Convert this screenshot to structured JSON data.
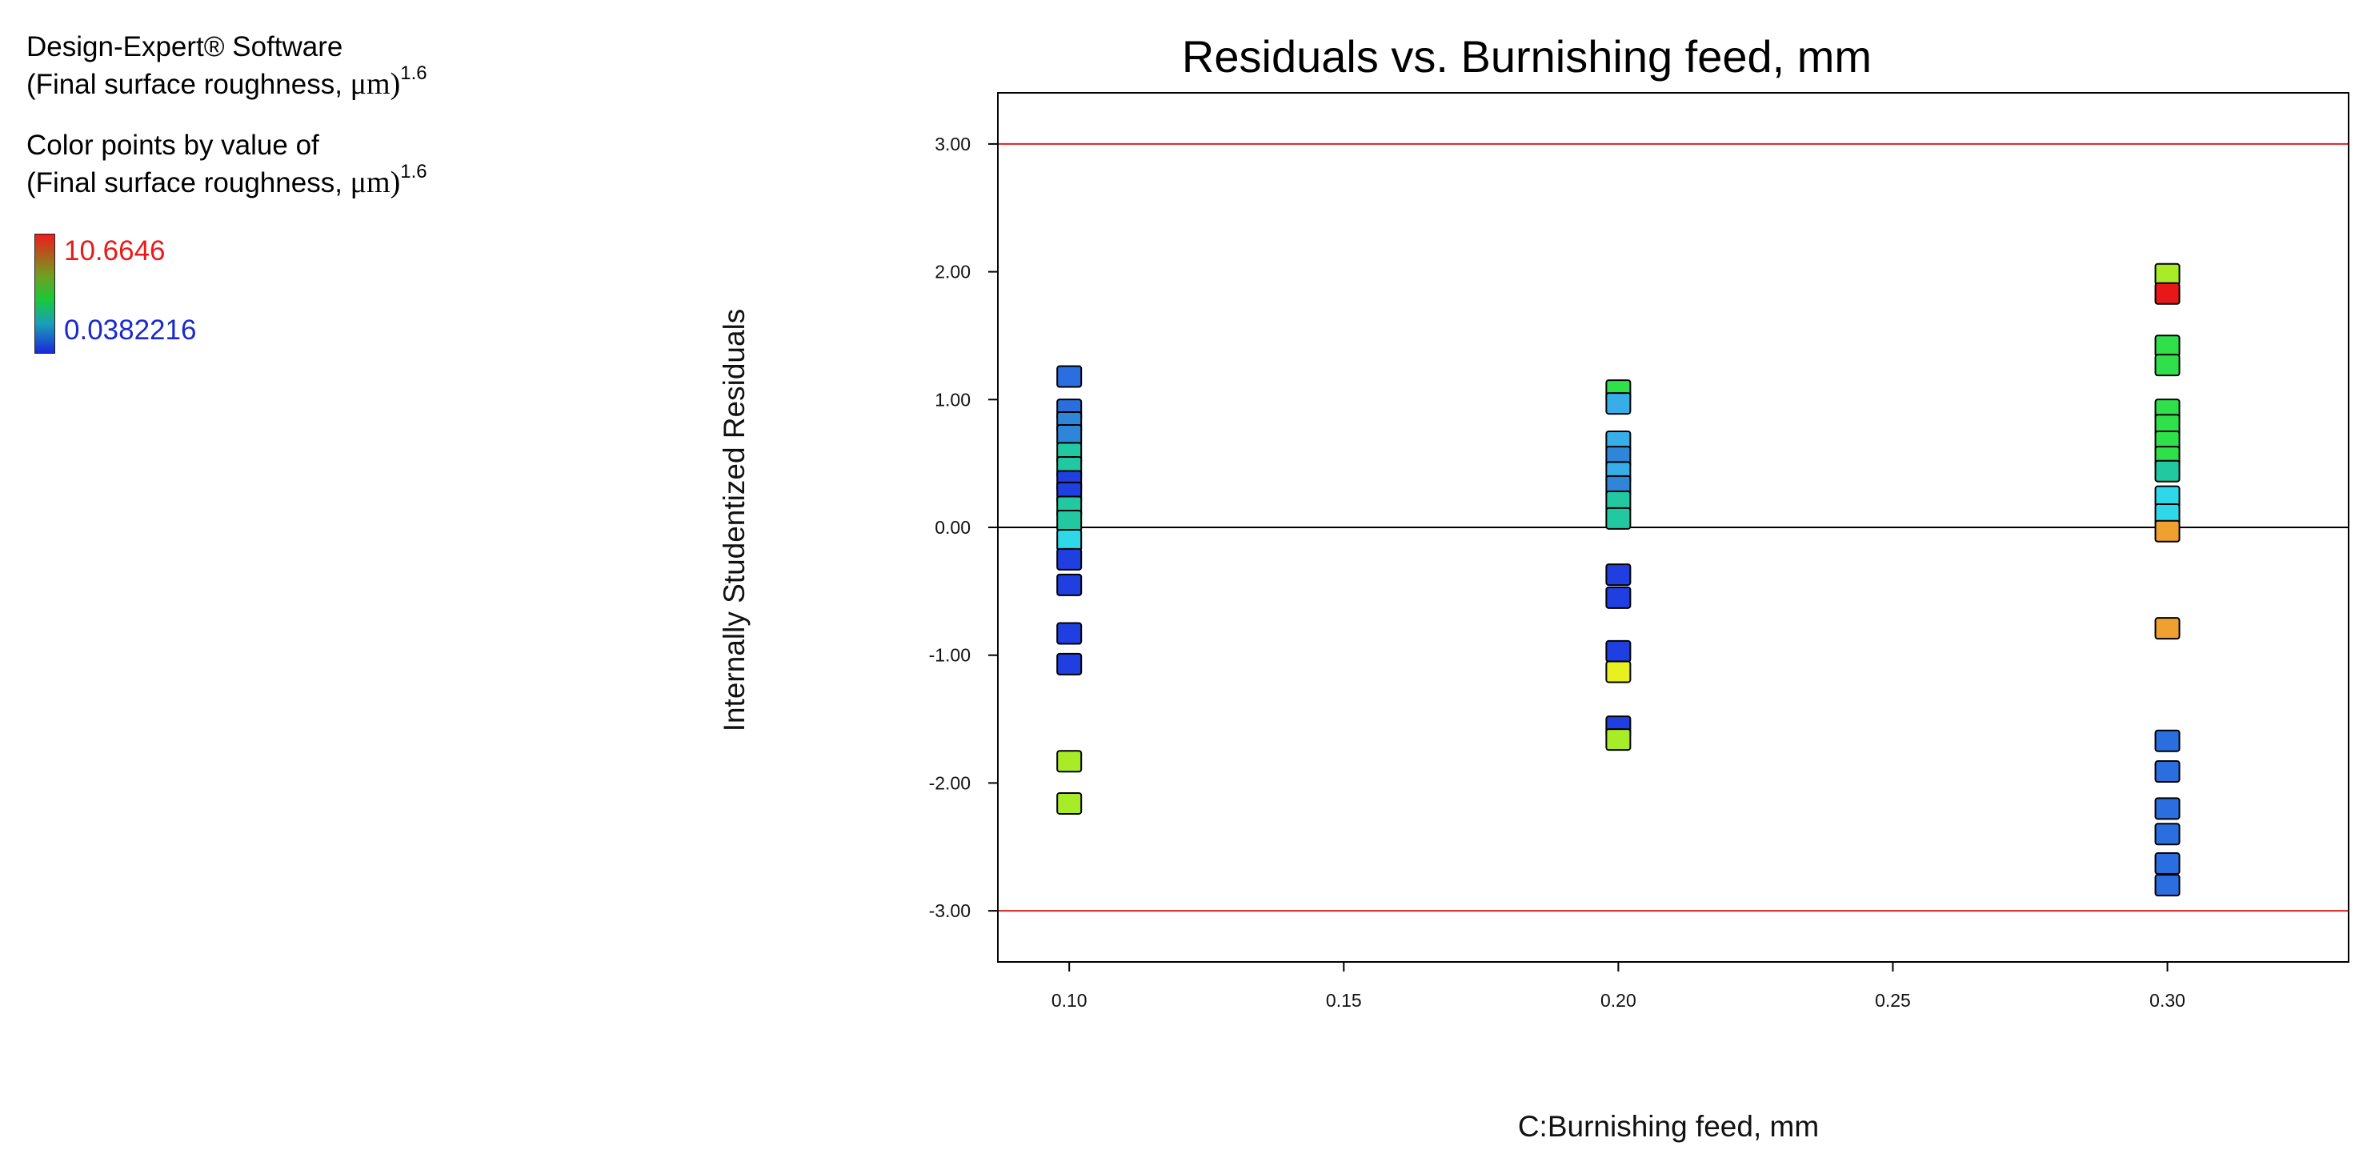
{
  "side_panel": {
    "software": "Design-Expert® Software",
    "response_prefix": "(Final surface roughness, ",
    "response_unit": "μm)",
    "response_power": "1.6",
    "color_by_label": "Color points by value of",
    "scale_max": "10.6646",
    "scale_min": "0.0382216"
  },
  "chart_data": {
    "type": "scatter",
    "title": "Residuals vs. Burnishing feed, mm",
    "xlabel": "C:Burnishing feed, mm",
    "ylabel": "Internally Studentized Residuals",
    "xlim": [
      0.087,
      0.333
    ],
    "ylim": [
      -3.4,
      3.4
    ],
    "x_ticks": [
      0.1,
      0.15,
      0.2,
      0.25,
      0.3
    ],
    "x_tick_labels": [
      "0.10",
      "0.15",
      "0.20",
      "0.25",
      "0.30"
    ],
    "y_ticks": [
      3,
      2,
      1,
      0,
      -1,
      -2,
      -3
    ],
    "y_tick_labels": [
      "3.00",
      "2.00",
      "1.00",
      "0.00",
      "-1.00",
      "-2.00",
      "-3.00"
    ],
    "reference_lines": [
      {
        "y": 3.0,
        "color": "#e02020"
      },
      {
        "y": 0.0,
        "color": "#000000"
      },
      {
        "y": -3.0,
        "color": "#e02020"
      }
    ],
    "grid": false,
    "colors": {
      "blue": "#1f3fe0",
      "mid_blue": "#2a6ee0",
      "steel_blue": "#2f86d8",
      "sky_blue": "#38aee8",
      "cyan": "#2fd8e8",
      "teal": "#22c8a0",
      "green": "#2fe04a",
      "yellow_green": "#a8ec28",
      "yellow": "#e8f020",
      "orange": "#f0a030",
      "red": "#e81818"
    },
    "points": [
      {
        "x": 0.1,
        "y": 1.18,
        "c": "mid_blue"
      },
      {
        "x": 0.1,
        "y": 0.92,
        "c": "mid_blue"
      },
      {
        "x": 0.1,
        "y": 0.82,
        "c": "steel_blue"
      },
      {
        "x": 0.1,
        "y": 0.72,
        "c": "steel_blue"
      },
      {
        "x": 0.1,
        "y": 0.58,
        "c": "teal"
      },
      {
        "x": 0.1,
        "y": 0.47,
        "c": "teal"
      },
      {
        "x": 0.1,
        "y": 0.36,
        "c": "blue"
      },
      {
        "x": 0.1,
        "y": 0.27,
        "c": "blue"
      },
      {
        "x": 0.1,
        "y": 0.16,
        "c": "teal"
      },
      {
        "x": 0.1,
        "y": 0.05,
        "c": "teal"
      },
      {
        "x": 0.1,
        "y": -0.1,
        "c": "cyan"
      },
      {
        "x": 0.1,
        "y": -0.25,
        "c": "blue"
      },
      {
        "x": 0.1,
        "y": -0.45,
        "c": "blue"
      },
      {
        "x": 0.1,
        "y": -0.83,
        "c": "blue"
      },
      {
        "x": 0.1,
        "y": -1.07,
        "c": "blue"
      },
      {
        "x": 0.1,
        "y": -1.83,
        "c": "yellow_green"
      },
      {
        "x": 0.1,
        "y": -2.16,
        "c": "yellow_green"
      },
      {
        "x": 0.2,
        "y": 1.07,
        "c": "green"
      },
      {
        "x": 0.2,
        "y": 0.97,
        "c": "sky_blue"
      },
      {
        "x": 0.2,
        "y": 0.67,
        "c": "sky_blue"
      },
      {
        "x": 0.2,
        "y": 0.55,
        "c": "steel_blue"
      },
      {
        "x": 0.2,
        "y": 0.43,
        "c": "sky_blue"
      },
      {
        "x": 0.2,
        "y": 0.32,
        "c": "steel_blue"
      },
      {
        "x": 0.2,
        "y": 0.2,
        "c": "teal"
      },
      {
        "x": 0.2,
        "y": 0.07,
        "c": "teal"
      },
      {
        "x": 0.2,
        "y": -0.37,
        "c": "blue"
      },
      {
        "x": 0.2,
        "y": -0.55,
        "c": "blue"
      },
      {
        "x": 0.2,
        "y": -0.97,
        "c": "blue"
      },
      {
        "x": 0.2,
        "y": -1.13,
        "c": "yellow"
      },
      {
        "x": 0.2,
        "y": -1.56,
        "c": "blue"
      },
      {
        "x": 0.2,
        "y": -1.66,
        "c": "yellow_green"
      },
      {
        "x": 0.3,
        "y": 1.98,
        "c": "yellow_green"
      },
      {
        "x": 0.3,
        "y": 1.83,
        "c": "red"
      },
      {
        "x": 0.3,
        "y": 1.42,
        "c": "green"
      },
      {
        "x": 0.3,
        "y": 1.27,
        "c": "green"
      },
      {
        "x": 0.3,
        "y": 0.92,
        "c": "green"
      },
      {
        "x": 0.3,
        "y": 0.8,
        "c": "green"
      },
      {
        "x": 0.3,
        "y": 0.67,
        "c": "green"
      },
      {
        "x": 0.3,
        "y": 0.55,
        "c": "green"
      },
      {
        "x": 0.3,
        "y": 0.44,
        "c": "teal"
      },
      {
        "x": 0.3,
        "y": 0.24,
        "c": "cyan"
      },
      {
        "x": 0.3,
        "y": 0.1,
        "c": "cyan"
      },
      {
        "x": 0.3,
        "y": -0.03,
        "c": "orange"
      },
      {
        "x": 0.3,
        "y": -0.79,
        "c": "orange"
      },
      {
        "x": 0.3,
        "y": -1.67,
        "c": "mid_blue"
      },
      {
        "x": 0.3,
        "y": -1.91,
        "c": "mid_blue"
      },
      {
        "x": 0.3,
        "y": -2.2,
        "c": "mid_blue"
      },
      {
        "x": 0.3,
        "y": -2.4,
        "c": "mid_blue"
      },
      {
        "x": 0.3,
        "y": -2.63,
        "c": "mid_blue"
      },
      {
        "x": 0.3,
        "y": -2.8,
        "c": "mid_blue"
      }
    ]
  }
}
